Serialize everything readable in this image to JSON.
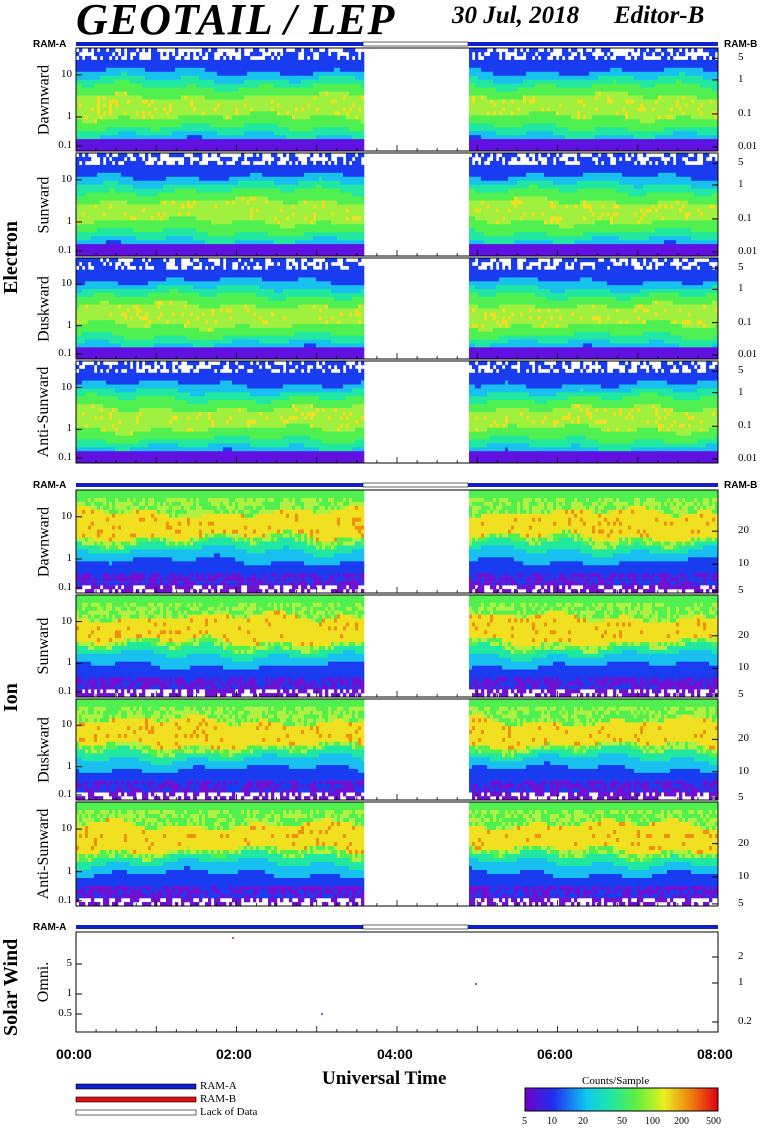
{
  "header": {
    "title": "GEOTAIL / LEP",
    "date": "30 Jul, 2018",
    "editor": "Editor-B"
  },
  "ram_labels": {
    "a": "RAM-A",
    "b": "RAM-B"
  },
  "groups": {
    "electron": "Electron",
    "ion": "Ion",
    "solar_wind": "Solar Wind"
  },
  "chart_data": {
    "type": "heatmap",
    "xlabel": "Universal Time",
    "x_ticks": [
      "00:00",
      "02:00",
      "04:00",
      "06:00",
      "08:00"
    ],
    "x_range": [
      "00:00",
      "08:00"
    ],
    "data_gap": [
      "03:35",
      "04:53"
    ],
    "colorbar": {
      "title": "Counts/Sample",
      "ticks": [
        "5",
        "10",
        "20",
        "50",
        "100",
        "200",
        "500"
      ],
      "scale": "log"
    },
    "legend": [
      {
        "label": "RAM-A",
        "color": "#1020c8"
      },
      {
        "label": "RAM-B",
        "color": "#e01010"
      },
      {
        "label": "Lack of Data",
        "color": "#ffffff"
      }
    ],
    "panels": [
      {
        "group": "Electron",
        "label": "Dawnward",
        "left_ticks": [
          "10",
          "1",
          "0.1"
        ],
        "right_ticks": [
          "5",
          "1",
          "0.1",
          "0.01"
        ]
      },
      {
        "group": "Electron",
        "label": "Sunward",
        "left_ticks": [
          "10",
          "1",
          "0.1"
        ],
        "right_ticks": [
          "5",
          "1",
          "0.1",
          "0.01"
        ]
      },
      {
        "group": "Electron",
        "label": "Duskward",
        "left_ticks": [
          "10",
          "1",
          "0.1"
        ],
        "right_ticks": [
          "5",
          "1",
          "0.1",
          "0.01"
        ]
      },
      {
        "group": "Electron",
        "label": "Anti-Sunward",
        "left_ticks": [
          "10",
          "1",
          "0.1"
        ],
        "right_ticks": [
          "5",
          "1",
          "0.1",
          "0.01"
        ]
      },
      {
        "group": "Ion",
        "label": "Dawnward",
        "left_ticks": [
          "10",
          "1",
          "0.1"
        ],
        "right_ticks": [
          "20",
          "10",
          "5"
        ]
      },
      {
        "group": "Ion",
        "label": "Sunward",
        "left_ticks": [
          "10",
          "1",
          "0.1"
        ],
        "right_ticks": [
          "20",
          "10",
          "5"
        ]
      },
      {
        "group": "Ion",
        "label": "Duskward",
        "left_ticks": [
          "10",
          "1",
          "0.1"
        ],
        "right_ticks": [
          "20",
          "10",
          "5"
        ]
      },
      {
        "group": "Ion",
        "label": "Anti-Sunward",
        "left_ticks": [
          "10",
          "1",
          "0.1"
        ],
        "right_ticks": [
          "20",
          "10",
          "5"
        ]
      },
      {
        "group": "Solar Wind",
        "label": "Omni.",
        "left_ticks": [
          "5",
          "1",
          "0.5"
        ],
        "right_ticks": [
          "2",
          "1",
          "0.2"
        ]
      }
    ]
  },
  "colors": {
    "ram_a": "#1020c8",
    "ram_b": "#e01010",
    "electron_palette": [
      "#6010e0",
      "#1a3cf0",
      "#18c0f0",
      "#20e8a0",
      "#50f050",
      "#a0f040",
      "#f0e020",
      "#f08010",
      "#e01010"
    ],
    "ion_palette": [
      "#7010d0",
      "#1a3cf0",
      "#18c0f0",
      "#20e8a0",
      "#50f050",
      "#b0f040",
      "#f0e020",
      "#f09010",
      "#e01010"
    ]
  }
}
